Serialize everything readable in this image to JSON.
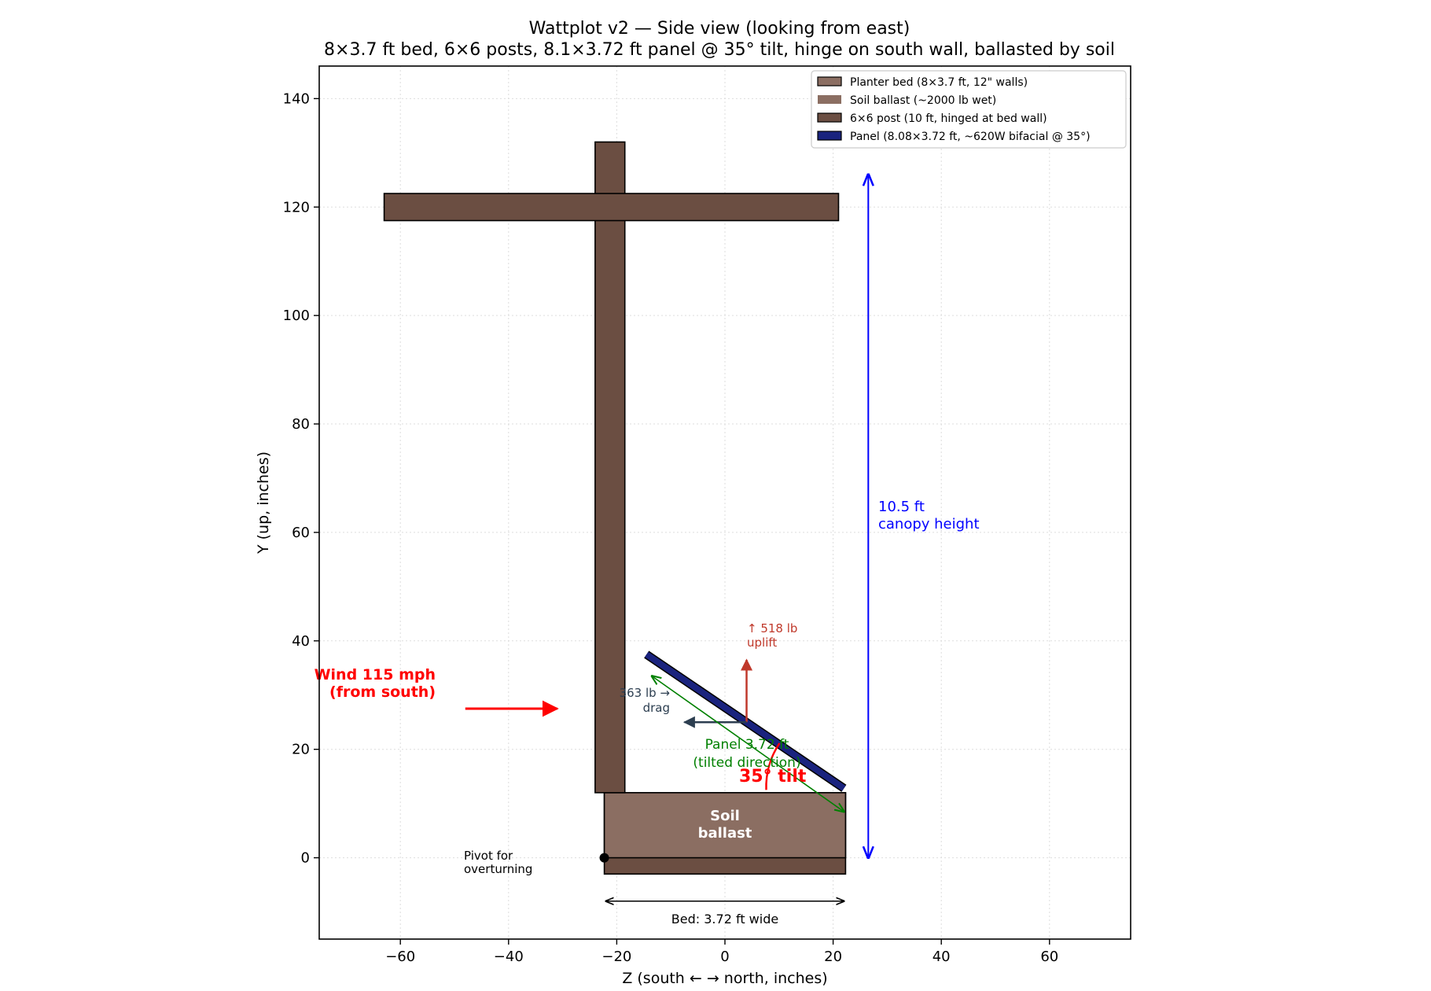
{
  "title": {
    "line1": "Wattplot v2 — Side view (looking from east)",
    "line2": "8×3.7 ft bed, 6×6 posts, 8.1×3.72 ft panel @ 35° tilt, hinge on south wall, ballasted by soil"
  },
  "axes": {
    "xlabel": "Z (south ←  → north, inches)",
    "ylabel": "Y (up, inches)",
    "xlim": [
      -75,
      75
    ],
    "ylim": [
      -15,
      146
    ],
    "xticks": [
      -60,
      -40,
      -20,
      0,
      20,
      40,
      60
    ],
    "yticks": [
      0,
      20,
      40,
      60,
      80,
      100,
      120,
      140
    ],
    "grid": true
  },
  "legend": {
    "placement": "top-right",
    "items": [
      {
        "label": "Planter bed (8×3.7 ft, 12\" walls)",
        "color": "#8b6e62"
      },
      {
        "label": "Soil ballast (~2000 lb wet)",
        "color": "#8b6e62"
      },
      {
        "label": "6×6 post (10 ft, hinged at bed wall)",
        "color": "#6b4e42"
      },
      {
        "label": "Panel (8.08×3.72 ft, ~620W bifacial @ 35°)",
        "color": "#1a237e"
      }
    ]
  },
  "colors": {
    "post": "#6b4e42",
    "soil": "#8b6e62",
    "panel": "#1a237e",
    "wind": "#ff0000",
    "uplift": "#c0392b",
    "drag": "#2c3e50",
    "dimension": "#0000ff",
    "panel_dim": "#008000"
  },
  "chart_data": {
    "type": "diagram",
    "bed": {
      "z": [
        -22.3,
        22.3
      ],
      "y": [
        -3,
        12
      ]
    },
    "soil": {
      "z": [
        -22.3,
        22.3
      ],
      "y": [
        0,
        12
      ]
    },
    "post_vertical": {
      "z": [
        -24,
        -18.5
      ],
      "y": [
        12,
        132
      ]
    },
    "crossbeam": {
      "z": [
        -63,
        21
      ],
      "y": [
        117.5,
        122.5
      ]
    },
    "panel": {
      "from": [
        -14.5,
        37.5
      ],
      "to": [
        22,
        12.8
      ],
      "tilt_deg": 35
    },
    "pivot": {
      "z": -22.3,
      "y": 0
    },
    "canopy_arrow": {
      "z": 26.5,
      "y": [
        0,
        126
      ]
    },
    "bed_width_arrow": {
      "z": [
        -22,
        22
      ],
      "y": -8
    },
    "wind_arrow": {
      "z": [
        -48,
        -31
      ],
      "y": 27.5
    },
    "uplift_arrow": {
      "z": 4,
      "y": [
        25,
        36.5
      ]
    },
    "drag_arrow": {
      "z": [
        4,
        -7.5
      ],
      "y": 25
    },
    "panel_dim_arrow": {
      "from": [
        -13.5,
        33.5
      ],
      "to": [
        22,
        8.5
      ]
    }
  },
  "annotations": {
    "wind_line1": "Wind 115 mph",
    "wind_line2": "(from south)",
    "uplift_line1": "↑ 518 lb",
    "uplift_line2": "uplift",
    "drag_line1": "363 lb →",
    "drag_line2": "drag",
    "panel_dim_line1": "Panel 3.72 ft",
    "panel_dim_line2": "(tilted direction)",
    "tilt_label": "35° tilt",
    "canopy_line1": "10.5 ft",
    "canopy_line2": "canopy height",
    "soil_line1": "Soil",
    "soil_line2": "ballast",
    "pivot_line1": "Pivot for",
    "pivot_line2": "overturning",
    "bed_width": "Bed: 3.72 ft wide"
  }
}
